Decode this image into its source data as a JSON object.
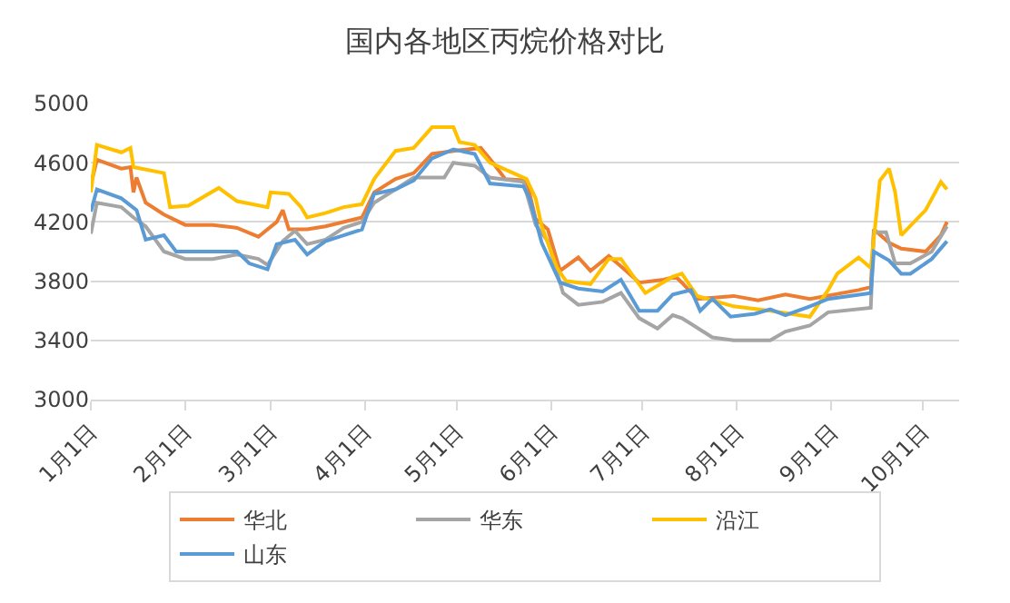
{
  "chart_data": {
    "type": "line",
    "title": "国内各地区丙烷价格对比",
    "xlim": [
      "--01-01",
      "--10-13"
    ],
    "xticks": [
      {
        "value": "--01-01",
        "label": "1月1日"
      },
      {
        "value": "--02-01",
        "label": "2月1日"
      },
      {
        "value": "--03-01",
        "label": "3月1日"
      },
      {
        "value": "--04-01",
        "label": "4月1日"
      },
      {
        "value": "--05-01",
        "label": "5月1日"
      },
      {
        "value": "--06-01",
        "label": "6月1日"
      },
      {
        "value": "--07-01",
        "label": "7月1日"
      },
      {
        "value": "--08-01",
        "label": "8月1日"
      },
      {
        "value": "--09-01",
        "label": "9月1日"
      },
      {
        "value": "--10-01",
        "label": "10月1日"
      }
    ],
    "ylim": [
      3000,
      5000
    ],
    "yticks": [
      3000,
      3400,
      3800,
      4200,
      4600,
      5000
    ],
    "grid": "y",
    "legend": "bottom",
    "marker": "none",
    "line_style": "solid",
    "series": [
      {
        "name": "华北",
        "color": "#ed7d31",
        "x": [
          "--01-01",
          "--01-03",
          "--01-11",
          "--01-14",
          "--01-15",
          "--01-16",
          "--01-19",
          "--01-25",
          "--02-01",
          "--02-10",
          "--02-18",
          "--02-25",
          "--03-03",
          "--03-05",
          "--03-07",
          "--03-13",
          "--03-19",
          "--03-31",
          "--04-04",
          "--04-11",
          "--04-17",
          "--04-23",
          "--04-30",
          "--05-09",
          "--05-13",
          "--05-17",
          "--05-24",
          "--05-27",
          "--05-31",
          "--06-04",
          "--06-10",
          "--06-14",
          "--06-20",
          "--06-24",
          "--06-30",
          "--07-08",
          "--07-12",
          "--07-14",
          "--07-19",
          "--07-31",
          "--08-08",
          "--08-17",
          "--08-25",
          "--09-10",
          "--09-14",
          "--09-15",
          "--09-20",
          "--09-24",
          "--10-02",
          "--10-07",
          "--10-09"
        ],
        "values": [
          4450,
          4620,
          4560,
          4570,
          4400,
          4500,
          4330,
          4250,
          4180,
          4180,
          4160,
          4100,
          4200,
          4280,
          4150,
          4150,
          4170,
          4230,
          4400,
          4490,
          4530,
          4660,
          4680,
          4700,
          4600,
          4490,
          4480,
          4220,
          4150,
          3870,
          3960,
          3870,
          3970,
          3900,
          3790,
          3810,
          3830,
          3790,
          3680,
          3700,
          3670,
          3710,
          3680,
          3740,
          3760,
          4150,
          4060,
          4020,
          4000,
          4110,
          4200
        ]
      },
      {
        "name": "华东",
        "color": "#a5a5a5",
        "x": [
          "--01-01",
          "--01-03",
          "--01-11",
          "--01-15",
          "--01-19",
          "--01-25",
          "--02-01",
          "--02-10",
          "--02-18",
          "--02-25",
          "--02-28",
          "--03-05",
          "--03-09",
          "--03-13",
          "--03-19",
          "--03-25",
          "--03-31",
          "--04-04",
          "--04-11",
          "--04-17",
          "--04-27",
          "--04-30",
          "--05-07",
          "--05-12",
          "--05-23",
          "--05-27",
          "--05-31",
          "--06-05",
          "--06-10",
          "--06-18",
          "--06-24",
          "--06-30",
          "--07-06",
          "--07-11",
          "--07-14",
          "--07-24",
          "--07-31",
          "--08-12",
          "--08-17",
          "--08-25",
          "--08-31",
          "--09-14",
          "--09-15",
          "--09-19",
          "--09-22",
          "--09-27",
          "--10-04",
          "--10-09"
        ],
        "values": [
          4120,
          4330,
          4300,
          4230,
          4170,
          4000,
          3950,
          3950,
          3980,
          3950,
          3910,
          4070,
          4140,
          4050,
          4080,
          4160,
          4200,
          4330,
          4420,
          4500,
          4500,
          4600,
          4580,
          4500,
          4470,
          4180,
          4070,
          3720,
          3640,
          3660,
          3720,
          3550,
          3480,
          3570,
          3550,
          3420,
          3400,
          3400,
          3460,
          3500,
          3590,
          3620,
          4130,
          4130,
          3920,
          3920,
          4000,
          4170
        ]
      },
      {
        "name": "沿江",
        "color": "#ffc000",
        "x": [
          "--01-01",
          "--01-03",
          "--01-11",
          "--01-14",
          "--01-15",
          "--01-25",
          "--01-27",
          "--02-02",
          "--02-12",
          "--02-18",
          "--02-28",
          "--03-01",
          "--03-07",
          "--03-11",
          "--03-13",
          "--03-19",
          "--03-25",
          "--03-31",
          "--04-04",
          "--04-11",
          "--04-17",
          "--04-23",
          "--04-30",
          "--05-02",
          "--05-07",
          "--05-12",
          "--05-24",
          "--05-27",
          "--05-29",
          "--06-03",
          "--06-06",
          "--06-14",
          "--06-20",
          "--06-24",
          "--07-02",
          "--07-11",
          "--07-14",
          "--07-19",
          "--07-31",
          "--08-12",
          "--08-25",
          "--08-31",
          "--09-03",
          "--09-10",
          "--09-14",
          "--09-17",
          "--09-20",
          "--09-22",
          "--09-24",
          "--10-02",
          "--10-07",
          "--10-09"
        ],
        "values": [
          4400,
          4720,
          4670,
          4700,
          4570,
          4530,
          4300,
          4310,
          4430,
          4340,
          4300,
          4400,
          4390,
          4300,
          4230,
          4260,
          4300,
          4320,
          4490,
          4680,
          4700,
          4840,
          4840,
          4740,
          4720,
          4600,
          4490,
          4360,
          4170,
          3890,
          3800,
          3780,
          3950,
          3950,
          3720,
          3830,
          3850,
          3700,
          3630,
          3600,
          3560,
          3740,
          3850,
          3960,
          3890,
          4480,
          4560,
          4400,
          4110,
          4280,
          4470,
          4420
        ]
      },
      {
        "name": "山东",
        "color": "#5b9bd5",
        "x": [
          "--01-01",
          "--01-03",
          "--01-11",
          "--01-16",
          "--01-19",
          "--01-25",
          "--01-29",
          "--02-10",
          "--02-18",
          "--02-22",
          "--02-28",
          "--03-03",
          "--03-09",
          "--03-13",
          "--03-19",
          "--03-25",
          "--03-31",
          "--04-04",
          "--04-11",
          "--04-17",
          "--04-23",
          "--04-30",
          "--05-07",
          "--05-12",
          "--05-23",
          "--05-25",
          "--05-29",
          "--06-04",
          "--06-10",
          "--06-18",
          "--06-24",
          "--06-30",
          "--07-06",
          "--07-11",
          "--07-17",
          "--07-20",
          "--07-24",
          "--07-30",
          "--08-07",
          "--08-12",
          "--08-17",
          "--08-25",
          "--08-31",
          "--09-14",
          "--09-15",
          "--09-20",
          "--09-24",
          "--09-27",
          "--10-04",
          "--10-09"
        ],
        "values": [
          4270,
          4420,
          4360,
          4280,
          4080,
          4110,
          4000,
          4000,
          4000,
          3920,
          3880,
          4050,
          4080,
          3980,
          4070,
          4110,
          4150,
          4390,
          4420,
          4480,
          4630,
          4690,
          4660,
          4460,
          4440,
          4360,
          4060,
          3790,
          3750,
          3730,
          3810,
          3600,
          3600,
          3710,
          3740,
          3600,
          3680,
          3560,
          3580,
          3610,
          3570,
          3630,
          3680,
          3720,
          4000,
          3940,
          3850,
          3850,
          3950,
          4070
        ]
      }
    ]
  }
}
